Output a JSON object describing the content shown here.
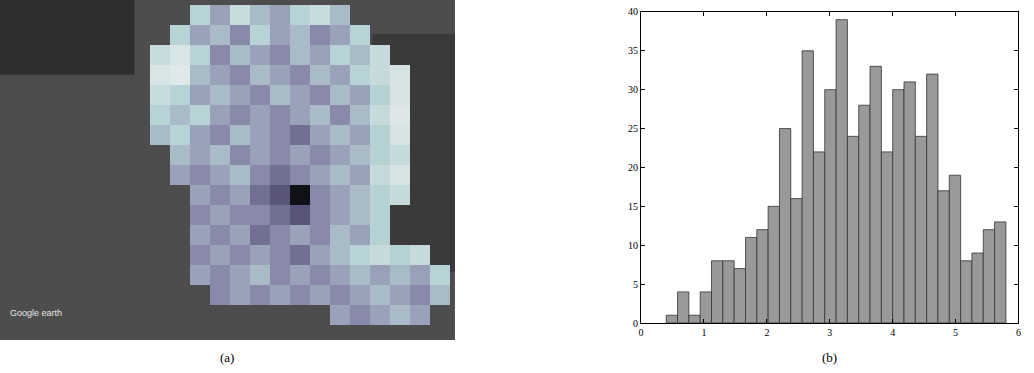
{
  "chart_data": [
    {
      "type": "heatmap",
      "caption": "(a)",
      "annotations": [
        "Google earth"
      ],
      "tick_labels": false,
      "xlim": [
        -8,
        14.75
      ],
      "ylim": [
        16.25,
        -0.75
      ],
      "zlim": [
        0,
        1
      ],
      "cells": [
        [
          null,
          null,
          0.3,
          0.5,
          0.2,
          0.4,
          0.5,
          0.3,
          0.2,
          0.4,
          null,
          null,
          null,
          null,
          null
        ],
        [
          null,
          0.3,
          0.5,
          0.4,
          0.6,
          0.3,
          0.5,
          0.4,
          0.6,
          0.5,
          0.3,
          null,
          null,
          null,
          null
        ],
        [
          0.2,
          0.1,
          0.3,
          0.6,
          0.4,
          0.5,
          0.6,
          0.4,
          0.5,
          0.3,
          0.4,
          0.2,
          null,
          null,
          null
        ],
        [
          0.1,
          0.05,
          0.4,
          0.5,
          0.6,
          0.4,
          0.5,
          0.6,
          0.4,
          0.5,
          0.3,
          0.2,
          0.1,
          null,
          null
        ],
        [
          0.2,
          0.3,
          0.5,
          0.4,
          0.5,
          0.6,
          0.4,
          0.5,
          0.6,
          0.4,
          0.5,
          0.3,
          0.1,
          null,
          null
        ],
        [
          0.3,
          0.4,
          0.3,
          0.5,
          0.6,
          0.5,
          0.6,
          0.5,
          0.4,
          0.6,
          0.4,
          0.2,
          0.05,
          null,
          null
        ],
        [
          0.4,
          0.3,
          0.5,
          0.6,
          0.4,
          0.5,
          0.6,
          0.7,
          0.5,
          0.4,
          0.5,
          0.3,
          0.1,
          null,
          null
        ],
        [
          null,
          0.4,
          0.5,
          0.4,
          0.6,
          0.5,
          0.6,
          0.5,
          0.6,
          0.5,
          0.4,
          0.3,
          0.2,
          null,
          null
        ],
        [
          null,
          0.5,
          0.6,
          0.5,
          0.4,
          0.6,
          0.7,
          0.6,
          0.5,
          0.4,
          0.5,
          0.2,
          0.1,
          null,
          null
        ],
        [
          null,
          null,
          0.5,
          0.6,
          0.5,
          0.7,
          0.8,
          1.0,
          0.6,
          0.5,
          0.4,
          0.3,
          0.2,
          null,
          null
        ],
        [
          null,
          null,
          0.6,
          0.5,
          0.6,
          0.6,
          0.7,
          0.8,
          0.6,
          0.5,
          0.4,
          0.3,
          null,
          null,
          null
        ],
        [
          null,
          null,
          0.5,
          0.6,
          0.5,
          0.7,
          0.6,
          0.5,
          0.6,
          0.4,
          0.5,
          0.3,
          null,
          null,
          null
        ],
        [
          null,
          null,
          0.6,
          0.5,
          0.6,
          0.5,
          0.6,
          0.7,
          0.5,
          0.4,
          0.3,
          0.2,
          0.3,
          0.2,
          null
        ],
        [
          null,
          null,
          0.5,
          0.6,
          0.5,
          0.4,
          0.6,
          0.5,
          0.6,
          0.5,
          0.4,
          0.5,
          0.4,
          0.5,
          0.3
        ],
        [
          null,
          null,
          null,
          0.6,
          0.5,
          0.6,
          0.5,
          0.6,
          0.5,
          0.6,
          0.5,
          0.4,
          0.5,
          0.6,
          0.4
        ],
        [
          null,
          null,
          null,
          null,
          null,
          null,
          null,
          null,
          null,
          0.5,
          0.6,
          0.5,
          0.4,
          0.5,
          null
        ]
      ]
    },
    {
      "type": "histogram",
      "caption": "(b)",
      "color": "#999999",
      "bins": [
        0.4,
        0.58,
        0.76,
        0.94,
        1.12,
        1.3,
        1.48,
        1.66,
        1.84,
        2.02,
        2.2,
        2.38,
        2.56,
        2.74,
        2.92,
        3.1,
        3.28,
        3.46,
        3.64,
        3.82,
        4.0,
        4.18,
        4.36,
        4.54,
        4.72,
        4.9,
        5.08,
        5.26,
        5.44,
        5.62,
        5.8
      ],
      "values": [
        1,
        4,
        1,
        4,
        8,
        8,
        7,
        11,
        12,
        15,
        25,
        16,
        35,
        22,
        30,
        39,
        24,
        28,
        33,
        22,
        30,
        31,
        24,
        32,
        17,
        19,
        8,
        9,
        12,
        13
      ],
      "xlim": [
        0,
        6
      ],
      "xticks": [
        0,
        1,
        2,
        3,
        4,
        5,
        6
      ],
      "ylim": [
        0,
        40
      ],
      "yticks": [
        0,
        5,
        10,
        15,
        20,
        25,
        30,
        35,
        40
      ]
    }
  ]
}
